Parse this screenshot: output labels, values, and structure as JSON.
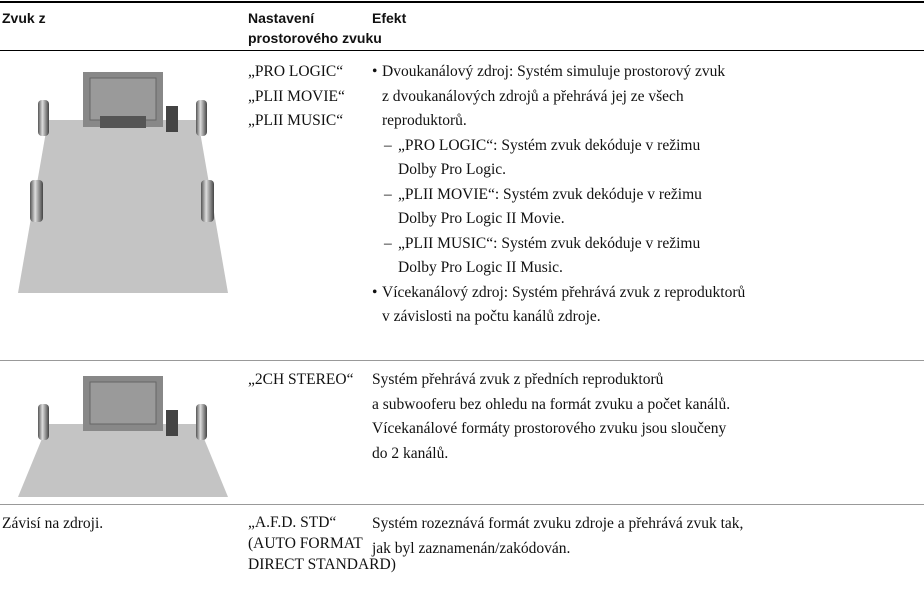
{
  "table": {
    "header": [
      "Zvuk z",
      [
        "Nastavení",
        "prostorového zvuku"
      ],
      "Efekt"
    ],
    "rows": [
      {
        "settings": [
          "„PRO LOGIC“",
          "„PLII MOVIE“",
          "„PLII MUSIC“"
        ],
        "effect": [
          {
            "lines": [
              "Dvoukanálový zdroj: Systém simuluje prostorový zvuk",
              "z dvoukanálových zdrojů a přehrává jej ze všech",
              "reproduktorů."
            ],
            "subitems": [
              [
                "„PRO LOGIC“: Systém zvuk dekóduje v režimu",
                "Dolby Pro Logic."
              ],
              [
                "„PLII MOVIE“: Systém zvuk dekóduje v režimu",
                "Dolby Pro Logic II Movie."
              ],
              [
                "„PLII MUSIC“: Systém zvuk dekóduje v režimu",
                "Dolby Pro Logic II Music."
              ]
            ]
          },
          {
            "lines": [
              "Vícekanálový zdroj: Systém přehrává zvuk z reproduktorů",
              "v závislosti na počtu kanálů zdroje."
            ]
          }
        ]
      },
      {
        "settings": [
          "„2CH STEREO“"
        ],
        "effect": [
          "Systém přehrává zvuk z předních reproduktorů",
          "a subwooferu bez ohledu na formát zvuku a počet kanálů.",
          "Vícekanálové formáty prostorového zvuku jsou sloučeny",
          "do 2 kanálů."
        ]
      },
      {
        "source": "Závisí na zdroji.",
        "settings": [
          "„A.F.D. STD“",
          "(AUTO FORMAT",
          "DIRECT STANDARD)"
        ],
        "effect": [
          "Systém rozeznává formát zvuku zdroje a přehrává zvuk tak,",
          "jak byl zaznamenán/zakódován."
        ]
      }
    ]
  }
}
